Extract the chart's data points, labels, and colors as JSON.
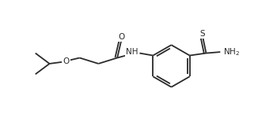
{
  "bg_color": "#ffffff",
  "bond_color": "#2a2a2a",
  "lw": 1.3,
  "fontsize": 7.5,
  "xlim": [
    0,
    9.5
  ],
  "ylim": [
    0,
    5
  ],
  "figsize": [
    3.26,
    1.5
  ],
  "dpi": 100
}
